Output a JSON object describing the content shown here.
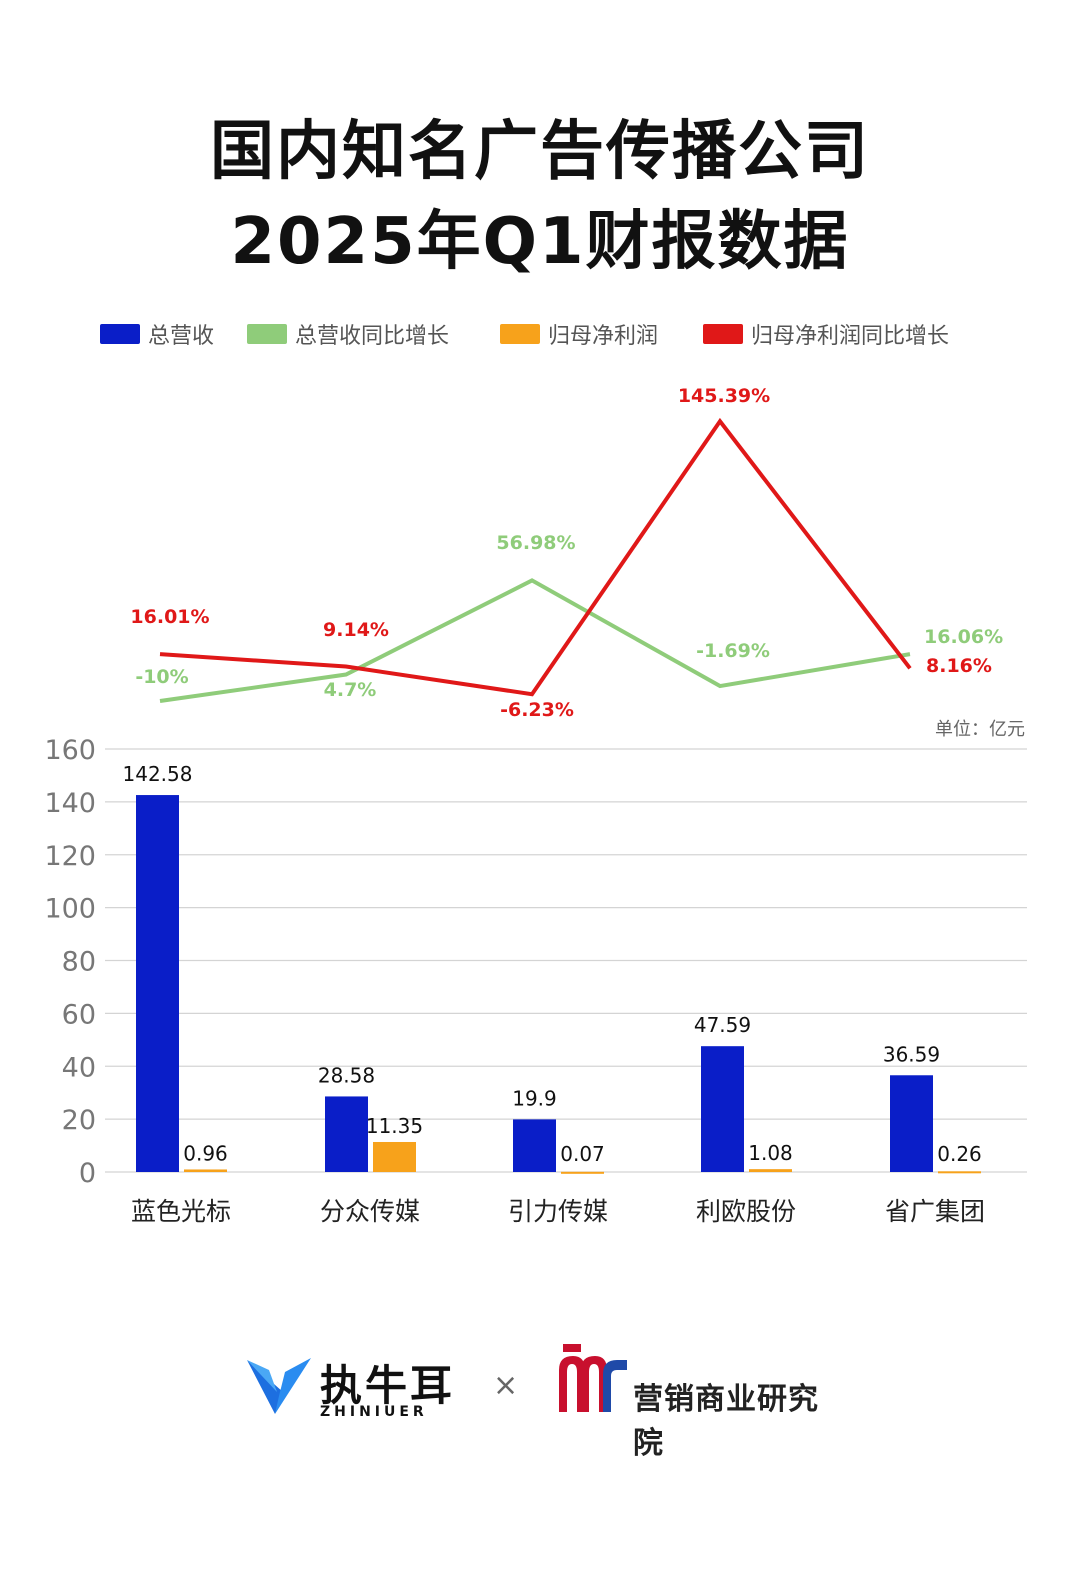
{
  "title": {
    "line1": "国内知名广告传播公司",
    "line2": "2025年Q1财报数据"
  },
  "legend": [
    {
      "label": "总营收",
      "color": "#0a1ec8"
    },
    {
      "label": "总营收同比增长",
      "color": "#8fcc7a"
    },
    {
      "label": "归母净利润",
      "color": "#f7a21b"
    },
    {
      "label": "归母净利润同比增长",
      "color": "#e01818"
    }
  ],
  "unit_label": "单位：亿元",
  "chart_data": {
    "type": "bar",
    "categories": [
      "蓝色光标",
      "分众传媒",
      "引力传媒",
      "利欧股份",
      "省广集团"
    ],
    "ylim": [
      0,
      160
    ],
    "yticks": [
      0,
      20,
      40,
      60,
      80,
      100,
      120,
      140,
      160
    ],
    "grid": true,
    "legend_position": "top",
    "series": [
      {
        "name": "总营收",
        "type": "bar",
        "color": "#0a1ec8",
        "values": [
          142.58,
          28.58,
          19.9,
          47.59,
          36.59
        ],
        "labels": [
          "142.58",
          "28.58",
          "19.9",
          "47.59",
          "36.59"
        ]
      },
      {
        "name": "归母净利润",
        "type": "bar",
        "color": "#f7a21b",
        "values": [
          0.96,
          11.35,
          0.07,
          1.08,
          0.26
        ],
        "labels": [
          "0.96",
          "11.35",
          "0.07",
          "1.08",
          "0.26"
        ]
      },
      {
        "name": "总营收同比增长",
        "type": "line",
        "color": "#8fcc7a",
        "values": [
          -10,
          4.7,
          56.98,
          -1.69,
          16.06
        ],
        "labels": [
          "-10%",
          "4.7%",
          "56.98%",
          "-1.69%",
          "16.06%"
        ]
      },
      {
        "name": "归母净利润同比增长",
        "type": "line",
        "color": "#e01818",
        "values": [
          16.01,
          9.14,
          -6.23,
          145.39,
          8.16
        ],
        "labels": [
          "16.01%",
          "9.14%",
          "-6.23%",
          "145.39%",
          "8.16%"
        ]
      }
    ]
  },
  "footer": {
    "logo_left_name": "执牛耳",
    "logo_left_en": "ZHINIUER",
    "separator": "×",
    "logo_right_name": "营销商业研究院"
  }
}
